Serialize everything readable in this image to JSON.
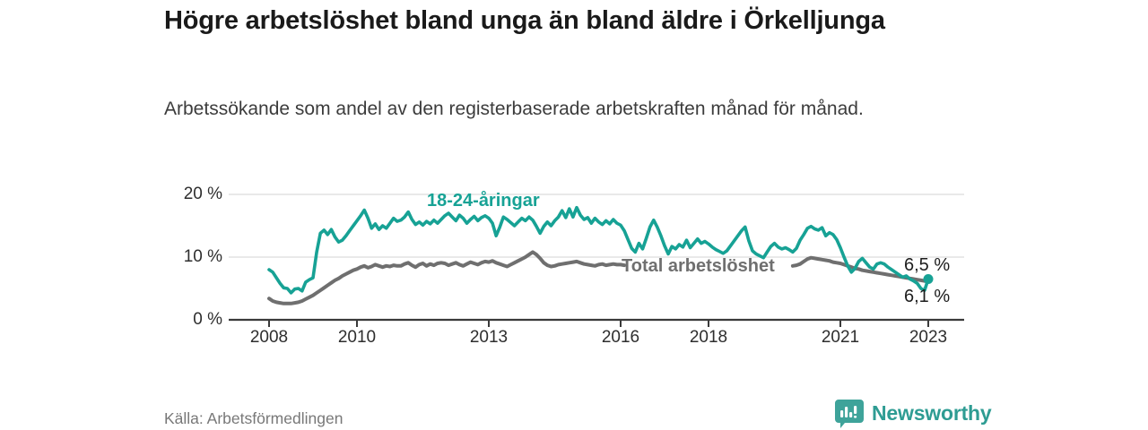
{
  "header": {
    "title": "Högre arbetslöshet bland unga än bland äldre i Örkelljunga",
    "subtitle": "Arbetssökande som andel av den registerbaserade arbetskraften månad för månad."
  },
  "chart_data": {
    "type": "line",
    "x_unit": "month",
    "x_start": "2008-01",
    "x_end": "2023-01",
    "ylim": [
      0,
      21
    ],
    "grid": "horizontal",
    "legend_position": "inline-labels",
    "y_ticks": [
      {
        "value": 0,
        "label": "0 %"
      },
      {
        "value": 10,
        "label": "10 %"
      },
      {
        "value": 20,
        "label": "20 %"
      }
    ],
    "x_ticks": [
      {
        "year": 2008,
        "label": "2008"
      },
      {
        "year": 2010,
        "label": "2010"
      },
      {
        "year": 2013,
        "label": "2013"
      },
      {
        "year": 2016,
        "label": "2016"
      },
      {
        "year": 2018,
        "label": "2018"
      },
      {
        "year": 2021,
        "label": "2021"
      },
      {
        "year": 2023,
        "label": "2023"
      }
    ],
    "series": [
      {
        "name": "18-24-åringar",
        "color": "#17A295",
        "end_label": "6,5 %",
        "end_value": 6.5,
        "end_marker": true,
        "values": [
          8.0,
          7.6,
          6.7,
          5.8,
          5.1,
          5.0,
          4.3,
          4.9,
          5.0,
          4.6,
          6.0,
          6.4,
          6.7,
          10.8,
          13.8,
          14.3,
          13.6,
          14.4,
          13.2,
          12.4,
          12.7,
          13.4,
          14.2,
          15.0,
          15.8,
          16.6,
          17.5,
          16.2,
          14.6,
          15.3,
          14.4,
          15.0,
          14.6,
          15.4,
          16.2,
          15.7,
          15.9,
          16.4,
          17.2,
          16.0,
          15.2,
          15.6,
          15.1,
          15.7,
          15.3,
          15.9,
          15.4,
          16.0,
          16.6,
          17.0,
          16.4,
          15.8,
          16.7,
          16.2,
          15.4,
          16.0,
          16.5,
          15.8,
          16.3,
          16.6,
          16.2,
          15.4,
          13.4,
          14.8,
          16.4,
          16.0,
          15.5,
          15.0,
          15.6,
          16.2,
          15.8,
          16.4,
          15.9,
          14.9,
          13.8,
          14.9,
          15.6,
          15.0,
          15.8,
          16.4,
          17.4,
          16.3,
          17.7,
          16.4,
          17.9,
          16.7,
          16.0,
          16.3,
          15.4,
          16.2,
          15.6,
          15.2,
          15.8,
          15.3,
          16.0,
          15.4,
          15.1,
          14.2,
          12.8,
          11.4,
          10.8,
          12.2,
          11.3,
          13.0,
          14.8,
          15.9,
          14.8,
          13.4,
          11.8,
          10.5,
          11.7,
          11.3,
          12.0,
          11.6,
          12.7,
          11.5,
          12.2,
          12.9,
          12.2,
          12.5,
          12.1,
          11.6,
          11.2,
          10.9,
          10.6,
          11.0,
          11.8,
          12.6,
          13.4,
          14.2,
          14.8,
          12.6,
          11.0,
          10.5,
          10.2,
          9.9,
          10.8,
          11.7,
          12.2,
          11.6,
          11.3,
          11.5,
          11.2,
          10.8,
          11.4,
          12.7,
          13.6,
          14.6,
          14.9,
          14.5,
          14.3,
          14.7,
          13.4,
          13.9,
          13.6,
          12.8,
          11.5,
          10.0,
          8.6,
          7.6,
          8.2,
          9.3,
          9.8,
          9.1,
          8.4,
          8.1,
          8.9,
          9.1,
          8.9,
          8.4,
          8.0,
          7.6,
          7.2,
          6.8,
          7.0,
          6.5,
          6.2,
          5.8,
          5.0,
          4.7,
          6.5
        ]
      },
      {
        "name": "Total arbetslöshet",
        "color": "#6F6F6F",
        "end_label": "6,1 %",
        "end_value": 6.1,
        "end_marker": false,
        "values": [
          3.4,
          3.0,
          2.8,
          2.7,
          2.6,
          2.6,
          2.6,
          2.7,
          2.8,
          3.0,
          3.3,
          3.6,
          3.9,
          4.3,
          4.7,
          5.1,
          5.5,
          5.9,
          6.3,
          6.6,
          7.0,
          7.3,
          7.6,
          7.9,
          8.1,
          8.4,
          8.6,
          8.3,
          8.5,
          8.8,
          8.6,
          8.4,
          8.6,
          8.5,
          8.7,
          8.6,
          8.6,
          8.9,
          9.1,
          8.7,
          8.4,
          8.8,
          9.0,
          8.6,
          8.9,
          8.7,
          9.0,
          9.1,
          9.0,
          8.7,
          8.9,
          9.1,
          8.8,
          8.6,
          8.9,
          9.2,
          9.0,
          8.8,
          9.1,
          9.3,
          9.2,
          9.4,
          9.1,
          8.9,
          8.7,
          8.5,
          8.8,
          9.1,
          9.4,
          9.7,
          10.0,
          10.4,
          10.8,
          10.4,
          9.8,
          9.1,
          8.7,
          8.5,
          8.6,
          8.8,
          8.9,
          9.0,
          9.1,
          9.2,
          9.3,
          9.1,
          8.9,
          8.8,
          8.7,
          8.6,
          8.8,
          8.9,
          8.7,
          8.8,
          8.9,
          8.8,
          8.8,
          8.7,
          8.6,
          8.5,
          8.4,
          8.3,
          8.4,
          8.5,
          8.4,
          8.3,
          8.2,
          8.3,
          8.2,
          8.1,
          8.0,
          8.0,
          7.9,
          7.9,
          8.0,
          8.1,
          8.0,
          7.9,
          8.0,
          8.1,
          8.0,
          7.9,
          7.8,
          7.8,
          7.7,
          7.7,
          7.8,
          7.9,
          8.0,
          8.1,
          8.2,
          8.3,
          8.2,
          8.1,
          8.2,
          8.3,
          8.4,
          8.5,
          8.6,
          8.5,
          8.4,
          8.5,
          8.6,
          8.6,
          8.7,
          8.9,
          9.3,
          9.7,
          9.9,
          9.8,
          9.7,
          9.6,
          9.5,
          9.4,
          9.2,
          9.1,
          9.0,
          8.8,
          8.6,
          8.4,
          8.2,
          8.1,
          7.9,
          7.8,
          7.7,
          7.6,
          7.5,
          7.4,
          7.3,
          7.2,
          7.1,
          7.0,
          6.9,
          6.8,
          6.7,
          6.6,
          6.5,
          6.4,
          6.3,
          6.2,
          6.1
        ]
      }
    ]
  },
  "footer": {
    "source": "Källa: Arbetsförmedlingen",
    "brand": "Newsworthy",
    "logo_icon": "newsworthy-bars-badge"
  },
  "colors": {
    "accent_teal": "#17A295",
    "line_gray": "#6F6F6F",
    "grid": "#DCDCDC",
    "axis": "#3A3A3A",
    "title_text": "#1A1A1A",
    "muted_text": "#787878",
    "brand_teal": "#2E9C93"
  }
}
